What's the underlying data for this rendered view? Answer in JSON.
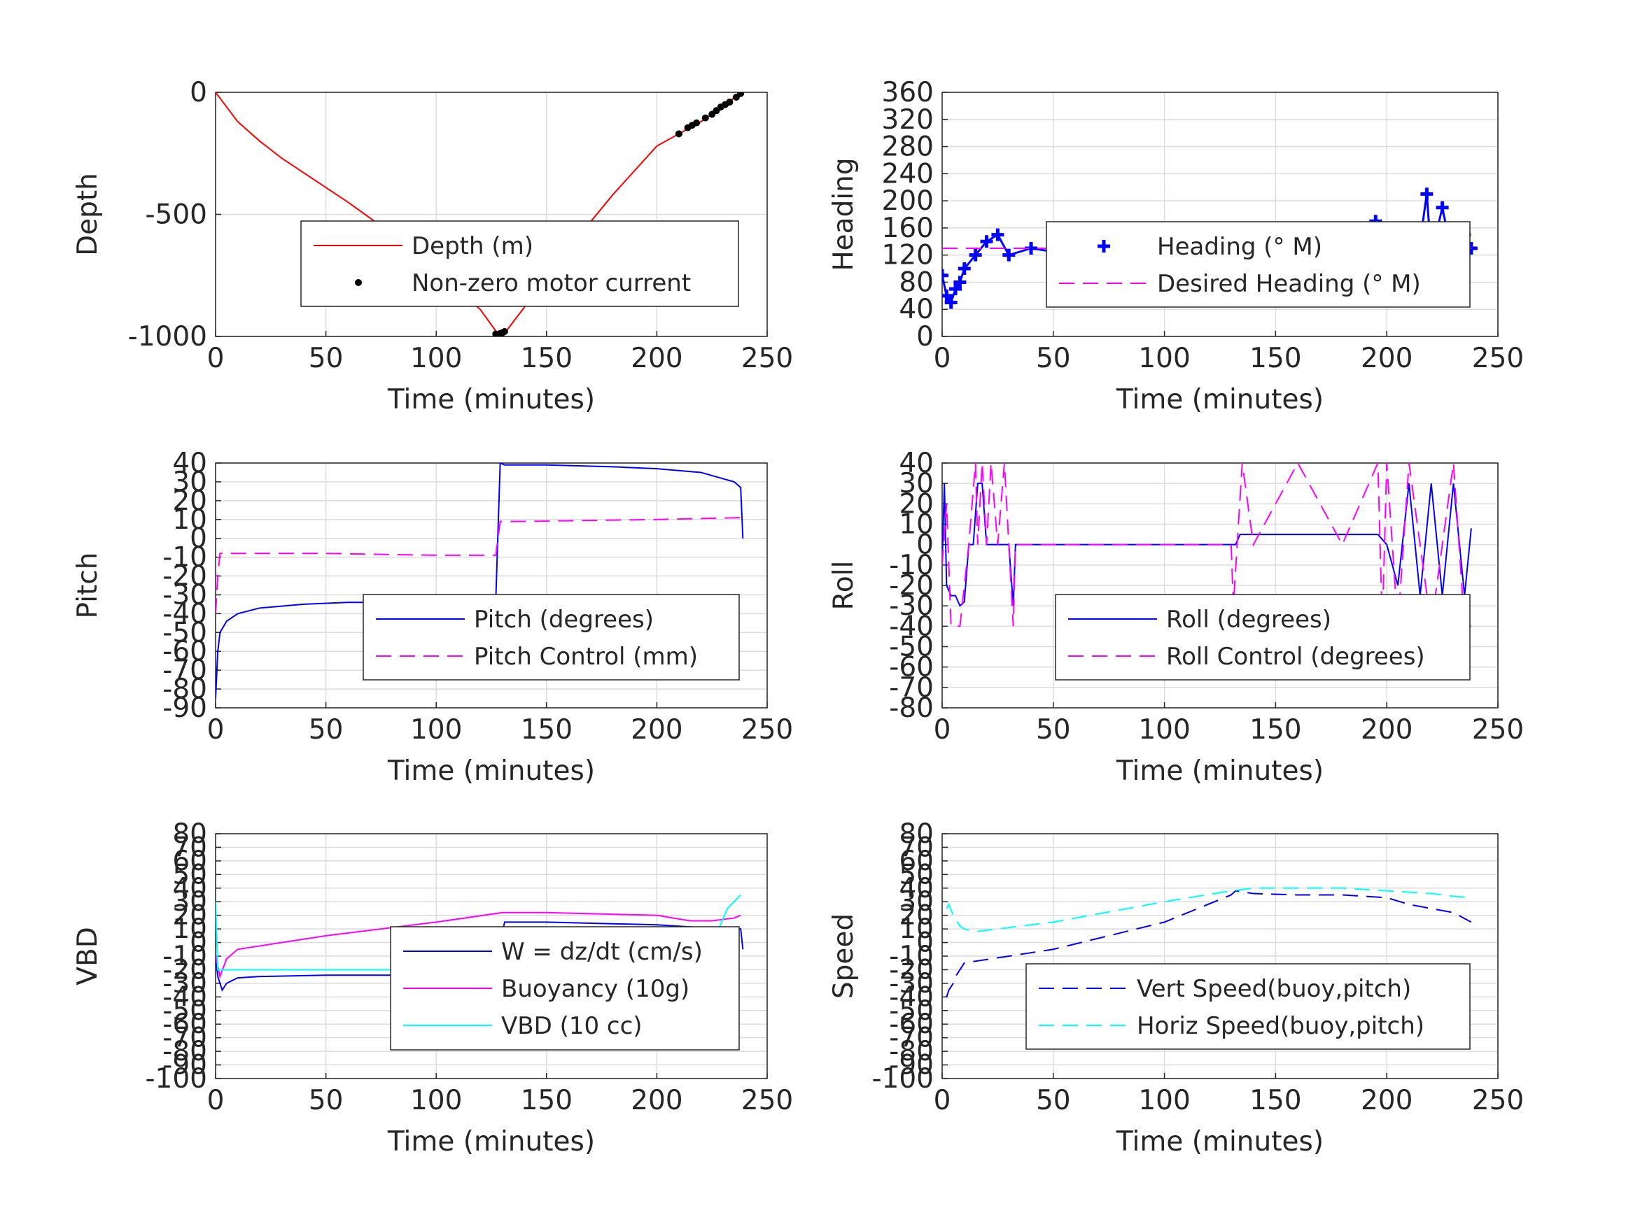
{
  "chart_data": [
    {
      "type": "line",
      "ylabel": "Depth",
      "xlabel": "Time (minutes)",
      "xlim": [
        0,
        250
      ],
      "ylim": [
        -1000,
        0
      ],
      "xticks": [
        "0",
        "50",
        "100",
        "150",
        "200",
        "250"
      ],
      "yticks": [
        "0",
        "-500",
        "-1000"
      ],
      "grid": true,
      "legend_position": "lower-right",
      "series": [
        {
          "name": "Depth (m)",
          "color": "#ff0000",
          "style": "solid",
          "x": [
            0,
            5,
            10,
            20,
            30,
            40,
            60,
            80,
            100,
            120,
            128,
            132,
            140,
            160,
            180,
            200,
            210,
            220,
            230,
            238
          ],
          "y": [
            0,
            -60,
            -120,
            -200,
            -270,
            -330,
            -450,
            -580,
            -720,
            -890,
            -990,
            -975,
            -880,
            -640,
            -420,
            -220,
            -170,
            -120,
            -60,
            0
          ]
        },
        {
          "name": "Non-zero motor current",
          "color": "#000000",
          "style": "markers",
          "x": [
            127,
            128,
            129,
            130,
            131,
            210,
            214,
            216,
            218,
            222,
            225,
            227,
            229,
            231,
            233,
            236,
            238
          ],
          "y": [
            -990,
            -995,
            -988,
            -985,
            -980,
            -170,
            -145,
            -135,
            -125,
            -105,
            -90,
            -75,
            -60,
            -50,
            -40,
            -20,
            -5
          ]
        }
      ]
    },
    {
      "type": "line",
      "ylabel": "Heading",
      "xlabel": "Time (minutes)",
      "xlim": [
        0,
        250
      ],
      "ylim": [
        0,
        360
      ],
      "xticks": [
        "0",
        "50",
        "100",
        "150",
        "200",
        "250"
      ],
      "yticks": [
        "0",
        "40",
        "80",
        "120",
        "160",
        "200",
        "240",
        "280",
        "320",
        "360"
      ],
      "grid": true,
      "legend_position": "upper-right",
      "series": [
        {
          "name": "Heading (° M)",
          "color": "#0000ff",
          "style": "plus-markers",
          "x": [
            0,
            2,
            4,
            6,
            8,
            10,
            15,
            20,
            25,
            30,
            40,
            50,
            60,
            70,
            80,
            90,
            100,
            110,
            120,
            130,
            140,
            150,
            160,
            170,
            180,
            190,
            195,
            200,
            210,
            215,
            218,
            220,
            225,
            230,
            235,
            238
          ],
          "y": [
            90,
            60,
            50,
            70,
            80,
            100,
            120,
            140,
            150,
            120,
            130,
            125,
            160,
            130,
            120,
            135,
            125,
            140,
            150,
            120,
            130,
            110,
            140,
            120,
            130,
            110,
            170,
            120,
            130,
            140,
            210,
            120,
            190,
            110,
            150,
            130
          ]
        },
        {
          "name": "Desired Heading (° M)",
          "color": "#ff00ff",
          "style": "dashed",
          "x": [
            0,
            238
          ],
          "y": [
            130,
            130
          ]
        }
      ]
    },
    {
      "type": "line",
      "ylabel": "Pitch",
      "xlabel": "Time (minutes)",
      "xlim": [
        0,
        250
      ],
      "ylim": [
        -90,
        40
      ],
      "xticks": [
        "0",
        "50",
        "100",
        "150",
        "200",
        "250"
      ],
      "yticks": [
        "-90",
        "-80",
        "-70",
        "-60",
        "-50",
        "-40",
        "-30",
        "-20",
        "-10",
        "0",
        "10",
        "20",
        "30",
        "40"
      ],
      "grid": true,
      "legend_position": "lower-right",
      "series": [
        {
          "name": "Pitch (degrees)",
          "color": "#0000ff",
          "style": "solid",
          "x": [
            0,
            1,
            2,
            5,
            10,
            20,
            40,
            60,
            80,
            100,
            120,
            127,
            129,
            131,
            150,
            180,
            200,
            220,
            235,
            238,
            239
          ],
          "y": [
            -85,
            -60,
            -50,
            -44,
            -40,
            -37,
            -35,
            -34,
            -34,
            -33,
            -33,
            -33,
            40,
            39,
            39,
            38,
            37,
            35,
            30,
            27,
            0
          ]
        },
        {
          "name": "Pitch Control (mm)",
          "color": "#ff00ff",
          "style": "dashed",
          "x": [
            0,
            1,
            2,
            5,
            50,
            100,
            127,
            129,
            140,
            200,
            238
          ],
          "y": [
            -40,
            -20,
            -8,
            -8,
            -8,
            -9,
            -9,
            9,
            9,
            10,
            11
          ]
        }
      ]
    },
    {
      "type": "line",
      "ylabel": "Roll",
      "xlabel": "Time (minutes)",
      "xlim": [
        0,
        250
      ],
      "ylim": [
        -80,
        40
      ],
      "xticks": [
        "0",
        "50",
        "100",
        "150",
        "200",
        "250"
      ],
      "yticks": [
        "-80",
        "-70",
        "-60",
        "-50",
        "-40",
        "-30",
        "-20",
        "-10",
        "0",
        "10",
        "20",
        "30",
        "40"
      ],
      "grid": true,
      "legend_position": "lower-right",
      "series": [
        {
          "name": "Roll (degrees)",
          "color": "#0000ff",
          "style": "solid",
          "x": [
            0,
            1,
            2,
            4,
            6,
            8,
            10,
            12,
            14,
            16,
            18,
            20,
            25,
            30,
            32,
            33,
            35,
            40,
            50,
            60,
            70,
            80,
            100,
            120,
            130,
            132,
            134,
            140,
            160,
            180,
            196,
            200,
            205,
            210,
            215,
            220,
            225,
            230,
            235,
            238
          ],
          "y": [
            -10,
            30,
            -20,
            -25,
            -25,
            -30,
            -28,
            0,
            0,
            30,
            30,
            0,
            0,
            0,
            -30,
            0,
            0,
            0,
            0,
            0,
            0,
            0,
            0,
            0,
            0,
            0,
            5,
            5,
            5,
            5,
            5,
            0,
            -20,
            30,
            -25,
            30,
            -25,
            30,
            -25,
            8
          ]
        },
        {
          "name": "Roll Control (degrees)",
          "color": "#ff00ff",
          "style": "dashed",
          "x": [
            0,
            2,
            4,
            8,
            10,
            12,
            15,
            16,
            18,
            20,
            22,
            25,
            28,
            30,
            32,
            33,
            40,
            60,
            80,
            100,
            120,
            130,
            131,
            135,
            140,
            160,
            180,
            196,
            198,
            200,
            205,
            210,
            220,
            230,
            235,
            238
          ],
          "y": [
            -10,
            20,
            -40,
            -40,
            -20,
            0,
            40,
            0,
            40,
            0,
            40,
            0,
            40,
            0,
            -40,
            0,
            0,
            0,
            0,
            0,
            0,
            0,
            -30,
            40,
            0,
            40,
            0,
            40,
            -40,
            40,
            -40,
            40,
            -40,
            40,
            -40,
            -40
          ]
        }
      ]
    },
    {
      "type": "line",
      "ylabel": "VBD",
      "xlabel": "Time (minutes)",
      "xlim": [
        0,
        250
      ],
      "ylim": [
        -100,
        80
      ],
      "xticks": [
        "0",
        "50",
        "100",
        "150",
        "200",
        "250"
      ],
      "yticks": [
        "-100",
        "-90",
        "-80",
        "-70",
        "-60",
        "-50",
        "-40",
        "-30",
        "-20",
        "-10",
        "0",
        "10",
        "20",
        "30",
        "40",
        "50",
        "60",
        "70",
        "80"
      ],
      "grid": true,
      "legend_position": "lower-right",
      "series": [
        {
          "name": "W = dz/dt (cm/s)",
          "color": "#0000ff",
          "style": "solid",
          "x": [
            0,
            1,
            2,
            3,
            5,
            10,
            20,
            50,
            100,
            127,
            129,
            131,
            150,
            200,
            230,
            238,
            239
          ],
          "y": [
            -10,
            -25,
            -30,
            -35,
            -30,
            -26,
            -25,
            -24,
            -24,
            -23,
            0,
            15,
            15,
            13,
            10,
            10,
            -5
          ]
        },
        {
          "name": "Buoyancy (10g)",
          "color": "#ff00ff",
          "style": "solid",
          "x": [
            0,
            2,
            5,
            10,
            50,
            100,
            130,
            150,
            200,
            215,
            225,
            235,
            238
          ],
          "y": [
            -10,
            -25,
            -12,
            -5,
            5,
            15,
            22,
            22,
            20,
            16,
            16,
            18,
            20
          ]
        },
        {
          "name": "VBD (10 cc)",
          "color": "#00ffff",
          "style": "solid",
          "x": [
            0,
            1,
            3,
            5,
            10,
            50,
            100,
            127,
            129,
            131,
            150,
            200,
            228,
            232,
            238
          ],
          "y": [
            30,
            -20,
            -20,
            -20,
            -20,
            -20,
            -20,
            -20,
            0,
            10,
            10,
            10,
            10,
            25,
            35
          ]
        }
      ]
    },
    {
      "type": "line",
      "ylabel": "Speed",
      "xlabel": "Time (minutes)",
      "xlim": [
        0,
        250
      ],
      "ylim": [
        -100,
        80
      ],
      "xticks": [
        "0",
        "50",
        "100",
        "150",
        "200",
        "250"
      ],
      "yticks": [
        "-100",
        "-90",
        "-80",
        "-70",
        "-60",
        "-50",
        "-40",
        "-30",
        "-20",
        "-10",
        "0",
        "10",
        "20",
        "30",
        "40",
        "50",
        "60",
        "70",
        "80"
      ],
      "grid": true,
      "legend_position": "lower-right",
      "series": [
        {
          "name": "Vert Speed(buoy,pitch)",
          "color": "#0000ff",
          "style": "dashed",
          "x": [
            2,
            3,
            5,
            6,
            8,
            10,
            50,
            100,
            130,
            132,
            140,
            160,
            180,
            200,
            210,
            220,
            230,
            238
          ],
          "y": [
            -40,
            -35,
            -30,
            -25,
            -20,
            -15,
            -5,
            15,
            35,
            38,
            36,
            35,
            35,
            33,
            28,
            25,
            22,
            15
          ]
        },
        {
          "name": "Horiz Speed(buoy,pitch)",
          "color": "#00ffff",
          "style": "dashed",
          "x": [
            2,
            3,
            5,
            8,
            10,
            15,
            50,
            100,
            130,
            140,
            160,
            180,
            200,
            220,
            230,
            238
          ],
          "y": [
            25,
            28,
            20,
            12,
            10,
            8,
            15,
            30,
            38,
            40,
            40,
            40,
            38,
            36,
            34,
            33
          ]
        }
      ]
    }
  ]
}
